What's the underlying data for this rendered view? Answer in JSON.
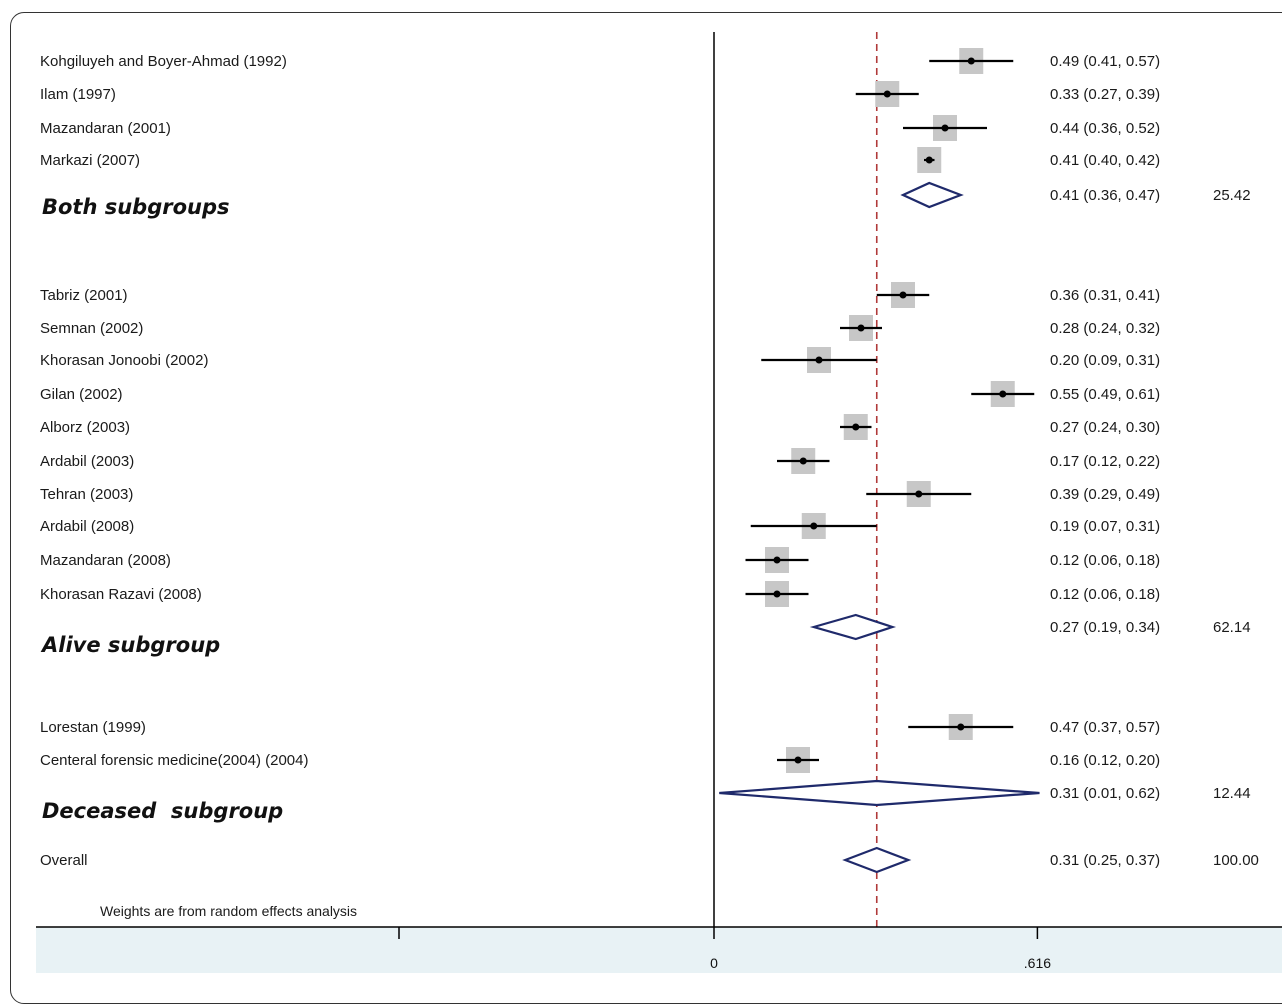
{
  "chart_data": {
    "type": "forest",
    "x_ticks": [
      {
        "value": 0,
        "label": "0"
      },
      {
        "value": 0.616,
        "label": ".616"
      }
    ],
    "null_line": 0,
    "overall_line": 0.31,
    "note": "Weights are from random effects analysis",
    "rows": [
      {
        "kind": "study",
        "label": "Kohgiluyeh and Boyer-Ahmad (1992)",
        "est": 0.49,
        "lo": 0.41,
        "hi": 0.57,
        "ci": "0.49 (0.41, 0.57)"
      },
      {
        "kind": "study",
        "label": "Ilam (1997)",
        "est": 0.33,
        "lo": 0.27,
        "hi": 0.39,
        "ci": "0.33 (0.27, 0.39)"
      },
      {
        "kind": "study",
        "label": "Mazandaran (2001)",
        "est": 0.44,
        "lo": 0.36,
        "hi": 0.52,
        "ci": "0.44 (0.36, 0.52)"
      },
      {
        "kind": "study",
        "label": "Markazi (2007)",
        "est": 0.41,
        "lo": 0.4,
        "hi": 0.42,
        "ci": "0.41 (0.40, 0.42)"
      },
      {
        "kind": "subtotal",
        "label": "Both subgroups",
        "est": 0.41,
        "lo": 0.36,
        "hi": 0.47,
        "ci": "0.41 (0.36, 0.47)",
        "weight": "25.42"
      },
      {
        "kind": "study",
        "label": "Tabriz (2001)",
        "est": 0.36,
        "lo": 0.31,
        "hi": 0.41,
        "ci": "0.36 (0.31, 0.41)"
      },
      {
        "kind": "study",
        "label": "Semnan (2002)",
        "est": 0.28,
        "lo": 0.24,
        "hi": 0.32,
        "ci": "0.28 (0.24, 0.32)"
      },
      {
        "kind": "study",
        "label": "Khorasan Jonoobi (2002)",
        "est": 0.2,
        "lo": 0.09,
        "hi": 0.31,
        "ci": "0.20 (0.09, 0.31)"
      },
      {
        "kind": "study",
        "label": "Gilan (2002)",
        "est": 0.55,
        "lo": 0.49,
        "hi": 0.61,
        "ci": "0.55 (0.49, 0.61)"
      },
      {
        "kind": "study",
        "label": "Alborz (2003)",
        "est": 0.27,
        "lo": 0.24,
        "hi": 0.3,
        "ci": "0.27 (0.24, 0.30)"
      },
      {
        "kind": "study",
        "label": "Ardabil (2003)",
        "est": 0.17,
        "lo": 0.12,
        "hi": 0.22,
        "ci": "0.17 (0.12, 0.22)"
      },
      {
        "kind": "study",
        "label": "Tehran (2003)",
        "est": 0.39,
        "lo": 0.29,
        "hi": 0.49,
        "ci": "0.39 (0.29, 0.49)"
      },
      {
        "kind": "study",
        "label": "Ardabil (2008)",
        "est": 0.19,
        "lo": 0.07,
        "hi": 0.31,
        "ci": "0.19 (0.07, 0.31)"
      },
      {
        "kind": "study",
        "label": "Mazandaran (2008)",
        "est": 0.12,
        "lo": 0.06,
        "hi": 0.18,
        "ci": "0.12 (0.06, 0.18)"
      },
      {
        "kind": "study",
        "label": "Khorasan Razavi (2008)",
        "est": 0.12,
        "lo": 0.06,
        "hi": 0.18,
        "ci": "0.12 (0.06, 0.18)"
      },
      {
        "kind": "subtotal",
        "label": "Alive subgroup",
        "est": 0.27,
        "lo": 0.19,
        "hi": 0.34,
        "ci": "0.27 (0.19, 0.34)",
        "weight": "62.14"
      },
      {
        "kind": "study",
        "label": "Lorestan (1999)",
        "est": 0.47,
        "lo": 0.37,
        "hi": 0.57,
        "ci": "0.47 (0.37, 0.57)"
      },
      {
        "kind": "study",
        "label": "Centeral forensic medicine(2004) (2004)",
        "est": 0.16,
        "lo": 0.12,
        "hi": 0.2,
        "ci": "0.16 (0.12, 0.20)"
      },
      {
        "kind": "subtotal",
        "label": "Deceased  subgroup",
        "est": 0.31,
        "lo": 0.01,
        "hi": 0.62,
        "ci": "0.31 (0.01, 0.62)",
        "weight": "12.44"
      },
      {
        "kind": "overall",
        "label": "Overall",
        "est": 0.31,
        "lo": 0.25,
        "hi": 0.37,
        "ci": "0.31 (0.25, 0.37)",
        "weight": "100.00"
      }
    ],
    "colors": {
      "diamond": "#1f2a6b",
      "box": "#c7c7c7",
      "line": "#000000",
      "overall_line": "#b03a3a",
      "axis_band": "#e8f2f5"
    }
  }
}
